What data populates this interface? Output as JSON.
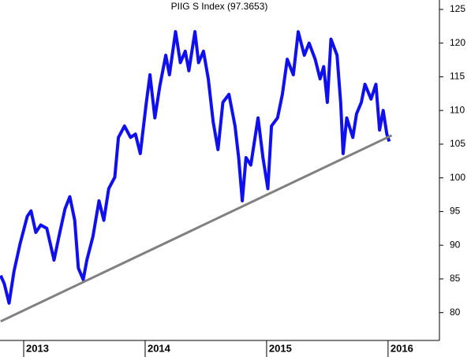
{
  "chart_data": {
    "type": "line",
    "title": "PIIG S Index (97.3653)",
    "series": [
      {
        "color": "#1010ee",
        "width": 4,
        "x": [
          2012.81,
          2012.84,
          2012.88,
          2012.92,
          2012.97,
          2013.03,
          2013.06,
          2013.1,
          2013.14,
          2013.19,
          2013.25,
          2013.29,
          2013.34,
          2013.38,
          2013.42,
          2013.45,
          2013.49,
          2013.52,
          2013.57,
          2013.62,
          2013.66,
          2013.7,
          2013.75,
          2013.78,
          2013.83,
          2013.88,
          2013.92,
          2013.96,
          2014.01,
          2014.04,
          2014.08,
          2014.12,
          2014.17,
          2014.2,
          2014.25,
          2014.29,
          2014.33,
          2014.36,
          2014.41,
          2014.44,
          2014.48,
          2014.52,
          2014.56,
          2014.6,
          2014.64,
          2014.69,
          2014.74,
          2014.77,
          2014.8,
          2014.83,
          2014.87,
          2014.9,
          2014.93,
          2014.97,
          2015.01,
          2015.04,
          2015.09,
          2015.13,
          2015.17,
          2015.22,
          2015.26,
          2015.31,
          2015.35,
          2015.4,
          2015.44,
          2015.47,
          2015.5,
          2015.53,
          2015.58,
          2015.61,
          2015.63,
          2015.66,
          2015.71,
          2015.74,
          2015.78,
          2015.81,
          2015.86,
          2015.9,
          2015.93,
          2015.96,
          2015.99,
          2016.01
        ],
        "values": [
          85.5,
          84.3,
          81.4,
          86.1,
          90.2,
          94.3,
          95.1,
          91.9,
          93,
          92.5,
          87.8,
          91.3,
          95.4,
          97.2,
          93.7,
          86.6,
          84.9,
          87.8,
          91.3,
          96.6,
          93.7,
          98.4,
          100.1,
          106,
          107.7,
          106,
          106.5,
          103.6,
          111.2,
          115.3,
          108.9,
          113.5,
          118.2,
          115.3,
          121.7,
          117.1,
          118.8,
          115.9,
          121.7,
          117.1,
          118.8,
          114.7,
          108.3,
          104.2,
          111.2,
          112.4,
          107.7,
          103,
          96.6,
          103,
          101.9,
          105.4,
          108.9,
          103,
          98.4,
          107.7,
          108.9,
          112.4,
          117.6,
          115.3,
          121.7,
          118.2,
          120,
          117.6,
          114.7,
          116.5,
          111.2,
          120.6,
          118.2,
          111.2,
          103.6,
          108.9,
          106,
          109.5,
          111.2,
          113.9,
          111.7,
          113.9,
          107.1,
          110,
          106.5,
          105.4
        ]
      },
      {
        "color": "#808080",
        "width": 3,
        "x": [
          2012.81,
          2016.03
        ],
        "values": [
          78.7,
          106.3
        ]
      }
    ],
    "xlim": [
      2012.805,
      2016.41
    ],
    "xticks": [
      2013,
      2014,
      2015,
      2016
    ],
    "ylim": [
      76.1,
      126.4
    ],
    "yticks": [
      80,
      85,
      90,
      95,
      100,
      105,
      110,
      115,
      120,
      125
    ]
  }
}
